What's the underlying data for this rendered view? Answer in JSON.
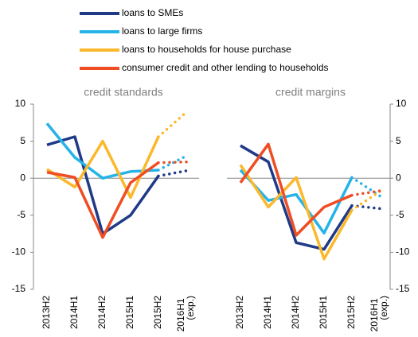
{
  "chart_data": {
    "type": "line",
    "series": [
      {
        "name": "loans to SMEs",
        "color": "#1f3a86"
      },
      {
        "name": "loans to large firms",
        "color": "#25b3e8"
      },
      {
        "name": "loans to households for house purchase",
        "color": "#fbb82b"
      },
      {
        "name": "consumer credit and other lending to households",
        "color": "#ef4d24"
      }
    ],
    "ylim": [
      -15,
      10
    ],
    "yticks": [
      10,
      5,
      0,
      -5,
      -10,
      -15
    ],
    "panels": [
      {
        "title": "credit standards",
        "categories": [
          "2013H2",
          "2014H1",
          "2014H2",
          "2015H1",
          "2015H2",
          "2016H1 (exp.)"
        ],
        "values": [
          [
            4.5,
            5.6,
            -7.5,
            -5,
            0.3,
            1
          ],
          [
            7.4,
            2.8,
            0,
            0.9,
            1.1,
            3
          ],
          [
            1.2,
            -1.2,
            5,
            -2.6,
            5.6,
            8.9
          ],
          [
            0.8,
            0.1,
            -8,
            -0.6,
            2.1,
            2.2
          ]
        ]
      },
      {
        "title": "credit margins",
        "categories": [
          "2013H2",
          "2014H1",
          "2014H2",
          "2015H1",
          "2015H2",
          "2016H1 (exp.)"
        ],
        "values": [
          [
            4.4,
            2.2,
            -8.7,
            -9.6,
            -3.7,
            -4.1
          ],
          [
            1.1,
            -3,
            -2.2,
            -7.4,
            0.1,
            -2.4
          ],
          [
            1.8,
            -3.9,
            0.1,
            -10.9,
            -4.3,
            -1.8
          ],
          [
            -0.6,
            4.6,
            -7.7,
            -3.9,
            -2.3,
            -1.7
          ]
        ]
      }
    ]
  }
}
